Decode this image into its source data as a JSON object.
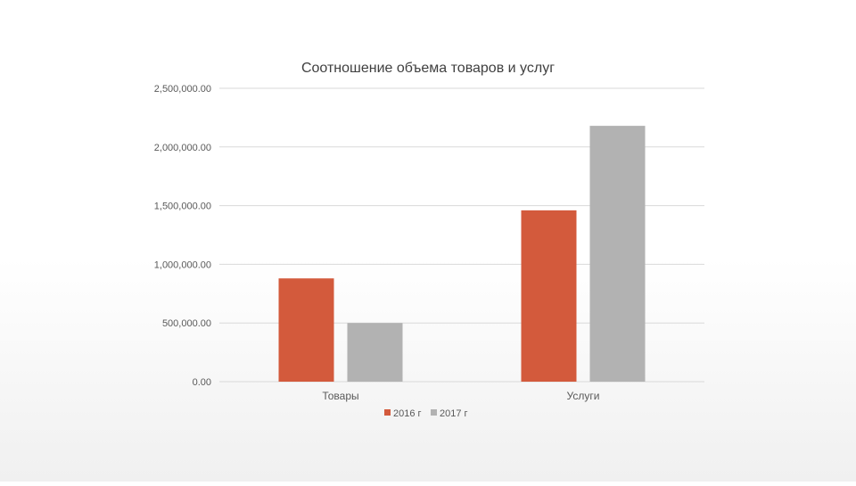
{
  "chart_data": {
    "type": "bar",
    "title": "Соотношение объема товаров и услуг",
    "categories": [
      "Товары",
      "Услуги"
    ],
    "series": [
      {
        "name": "2016 г",
        "values": [
          880000,
          1460000
        ],
        "color": "#d35a3c"
      },
      {
        "name": "2017 г",
        "values": [
          500000,
          2180000
        ],
        "color": "#b2b2b2"
      }
    ],
    "ylim": [
      0,
      2500000
    ],
    "yticks": [
      "0.00",
      "500,000.00",
      "1,000,000.00",
      "1,500,000.00",
      "2,000,000.00",
      "2,500,000.00"
    ],
    "ytick_values": [
      0,
      500000,
      1000000,
      1500000,
      2000000,
      2500000
    ],
    "grid": true,
    "legend_position": "bottom",
    "xlabel": "",
    "ylabel": ""
  }
}
